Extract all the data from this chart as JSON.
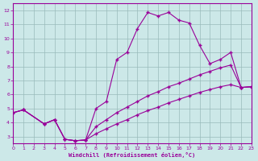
{
  "bg_color": "#cce8e8",
  "grid_color": "#99bbbb",
  "line_color": "#990099",
  "xlabel": "Windchill (Refroidissement éolien,°C)",
  "xlim": [
    0,
    23
  ],
  "ylim": [
    2.5,
    12.5
  ],
  "xticks": [
    0,
    1,
    2,
    3,
    4,
    5,
    6,
    7,
    8,
    9,
    10,
    11,
    12,
    13,
    14,
    15,
    16,
    17,
    18,
    19,
    20,
    21,
    22,
    23
  ],
  "yticks": [
    3,
    4,
    5,
    6,
    7,
    8,
    9,
    10,
    11,
    12
  ],
  "series": [
    {
      "x": [
        0,
        1,
        3,
        4,
        5,
        6,
        7,
        8,
        9,
        10,
        11,
        12,
        13,
        14,
        15,
        16,
        17,
        18,
        19,
        20,
        21,
        22,
        23
      ],
      "y": [
        4.7,
        4.9,
        3.9,
        4.2,
        2.8,
        2.7,
        2.75,
        5.0,
        5.5,
        8.5,
        9.0,
        10.7,
        11.85,
        11.6,
        11.85,
        11.3,
        11.1,
        9.5,
        8.2,
        8.5,
        9.0,
        6.5,
        6.55
      ]
    },
    {
      "x": [
        0,
        1,
        3,
        4,
        5,
        6,
        7,
        8,
        9,
        10,
        11,
        12,
        13,
        14,
        15,
        16,
        17,
        18,
        19,
        20,
        21,
        22,
        23
      ],
      "y": [
        4.7,
        4.9,
        3.9,
        4.2,
        2.8,
        2.7,
        2.75,
        3.7,
        4.2,
        4.7,
        5.1,
        5.5,
        5.9,
        6.2,
        6.55,
        6.8,
        7.1,
        7.4,
        7.65,
        7.9,
        8.1,
        6.5,
        6.55
      ]
    },
    {
      "x": [
        0,
        1,
        3,
        4,
        5,
        6,
        7,
        8,
        9,
        10,
        11,
        12,
        13,
        14,
        15,
        16,
        17,
        18,
        19,
        20,
        21,
        22,
        23
      ],
      "y": [
        4.7,
        4.9,
        3.9,
        4.2,
        2.8,
        2.7,
        2.75,
        3.2,
        3.55,
        3.9,
        4.2,
        4.55,
        4.85,
        5.1,
        5.4,
        5.65,
        5.9,
        6.15,
        6.35,
        6.55,
        6.7,
        6.5,
        6.55
      ]
    }
  ]
}
